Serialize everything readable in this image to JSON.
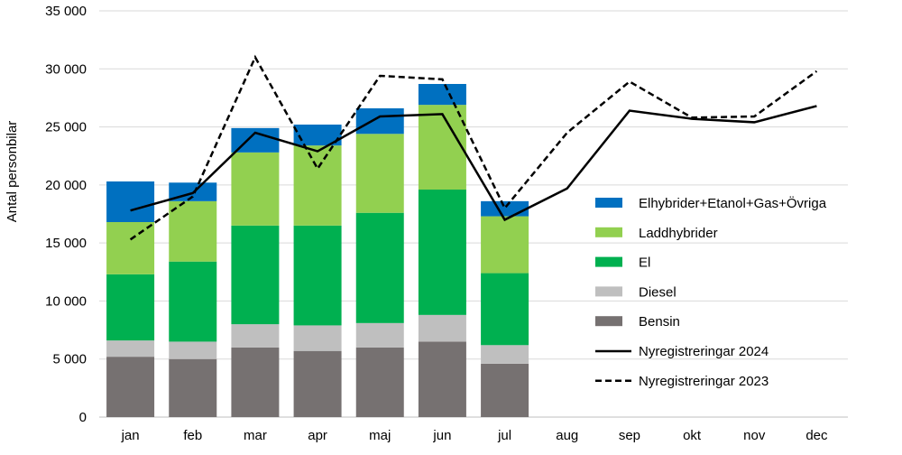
{
  "chart_data": {
    "type": "bar",
    "stacked": true,
    "title": "",
    "ylabel": "Antal personbilar",
    "xlabel": "",
    "ylim": [
      0,
      35000
    ],
    "yticks": [
      0,
      5000,
      10000,
      15000,
      20000,
      25000,
      30000,
      35000
    ],
    "ytick_labels": [
      "0",
      "5 000",
      "10 000",
      "15 000",
      "20 000",
      "25 000",
      "30 000",
      "35 000"
    ],
    "grid": true,
    "legend_position": "right",
    "categories": [
      "jan",
      "feb",
      "mar",
      "apr",
      "maj",
      "jun",
      "jul",
      "aug",
      "sep",
      "okt",
      "nov",
      "dec"
    ],
    "series": [
      {
        "name": "Bensin",
        "color": "#767171",
        "kind": "bar",
        "values": [
          5200,
          5000,
          6000,
          5700,
          6000,
          6500,
          4600,
          null,
          null,
          null,
          null,
          null
        ]
      },
      {
        "name": "Diesel",
        "color": "#bfbfbf",
        "kind": "bar",
        "values": [
          1400,
          1500,
          2000,
          2200,
          2100,
          2300,
          1600,
          null,
          null,
          null,
          null,
          null
        ]
      },
      {
        "name": "El",
        "color": "#00b050",
        "kind": "bar",
        "values": [
          5700,
          6900,
          8500,
          8600,
          9500,
          10800,
          6200,
          null,
          null,
          null,
          null,
          null
        ]
      },
      {
        "name": "Laddhybrider",
        "color": "#92d050",
        "kind": "bar",
        "values": [
          4500,
          5200,
          6300,
          6900,
          6800,
          7300,
          4900,
          null,
          null,
          null,
          null,
          null
        ]
      },
      {
        "name": "Elhybrider+Etanol+Gas+Övriga",
        "color": "#0070c0",
        "kind": "bar",
        "values": [
          3500,
          1600,
          2100,
          1800,
          2200,
          1800,
          1300,
          null,
          null,
          null,
          null,
          null
        ]
      },
      {
        "name": "Nyregistreringar 2024",
        "color": "#000000",
        "kind": "line",
        "dash": "solid",
        "values": [
          17800,
          19300,
          24500,
          22900,
          25900,
          26100,
          17000,
          19700,
          26400,
          25700,
          25400,
          26800
        ]
      },
      {
        "name": "Nyregistreringar 2023",
        "color": "#000000",
        "kind": "line",
        "dash": "dashed",
        "values": [
          15300,
          19000,
          31000,
          21400,
          29400,
          29100,
          18000,
          24500,
          28900,
          25800,
          25900,
          29800
        ]
      }
    ],
    "legend_order": [
      "Elhybrider+Etanol+Gas+Övriga",
      "Laddhybrider",
      "El",
      "Diesel",
      "Bensin",
      "Nyregistreringar 2024",
      "Nyregistreringar 2023"
    ]
  }
}
